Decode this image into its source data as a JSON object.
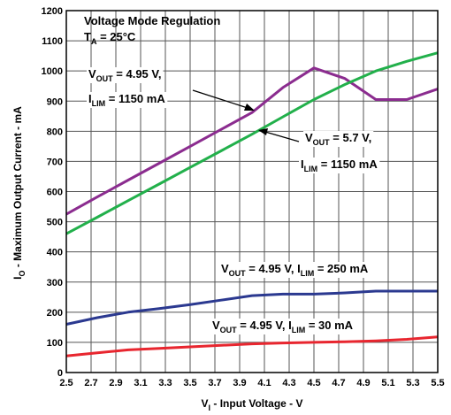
{
  "chart_data": {
    "type": "line",
    "x": [
      2.5,
      2.75,
      3.0,
      3.25,
      3.5,
      3.75,
      4.0,
      4.25,
      4.5,
      4.75,
      5.0,
      5.25,
      5.5
    ],
    "series": [
      {
        "name": "VOUT = 4.95 V, ILIM = 1150 mA",
        "color": "#8b2c8f",
        "values": [
          525,
          582,
          638,
          694,
          750,
          806,
          862,
          945,
          1010,
          975,
          905,
          905,
          940
        ]
      },
      {
        "name": "VOUT = 5.7 V, ILIM = 1150 mA",
        "color": "#22b04b",
        "values": [
          460,
          515,
          570,
          625,
          680,
          735,
          790,
          848,
          905,
          955,
          1000,
          1032,
          1060
        ]
      },
      {
        "name": "VOUT = 4.95 V, ILIM = 250 mA",
        "color": "#2b3990",
        "values": [
          160,
          182,
          200,
          212,
          225,
          240,
          255,
          260,
          260,
          264,
          270,
          270,
          270
        ]
      },
      {
        "name": "VOUT = 4.95 V, ILIM = 30 mA",
        "color": "#e8262f",
        "values": [
          55,
          65,
          75,
          80,
          85,
          90,
          95,
          98,
          100,
          102,
          105,
          110,
          118
        ]
      }
    ],
    "xlim": [
      2.5,
      5.5
    ],
    "xticks": [
      2.5,
      2.7,
      2.9,
      3.1,
      3.3,
      3.5,
      3.7,
      3.9,
      4.1,
      4.3,
      4.5,
      4.7,
      4.9,
      5.1,
      5.3,
      5.5
    ],
    "ylim": [
      0,
      1200
    ],
    "yticks": [
      0,
      100,
      200,
      300,
      400,
      500,
      600,
      700,
      800,
      900,
      1000,
      1100,
      1200
    ],
    "grid": true,
    "x_label": [
      {
        "text": "V"
      },
      {
        "sub": "I"
      },
      {
        "text": " - Input Voltage - V"
      }
    ],
    "y_label": [
      {
        "text": "I"
      },
      {
        "sub": "O"
      },
      {
        "text": " - Maximum Output Current - mA"
      }
    ],
    "annotations": [
      [
        [
          {
            "text": "Voltage Mode Regulation"
          }
        ]
      ],
      [
        [
          {
            "text": "T"
          },
          {
            "sub": "A"
          },
          {
            "text": " = 25°C"
          }
        ]
      ],
      [
        [
          {
            "text": "V"
          },
          {
            "sub": "OUT"
          },
          {
            "text": " = 4.95 V,"
          }
        ],
        [
          {
            "text": "I"
          },
          {
            "sub": "LIM"
          },
          {
            "text": " = 1150 mA"
          }
        ]
      ],
      [
        [
          {
            "text": "V"
          },
          {
            "sub": "OUT"
          },
          {
            "text": " = 5.7 V,"
          }
        ],
        [
          {
            "text": "I"
          },
          {
            "sub": "LIM"
          },
          {
            "text": " = 1150 mA"
          }
        ]
      ],
      [
        [
          {
            "text": "V"
          },
          {
            "sub": "OUT"
          },
          {
            "text": " = 4.95 V, I"
          },
          {
            "sub": "LIM"
          },
          {
            "text": " = 250 mA"
          }
        ]
      ],
      [
        [
          {
            "text": "V"
          },
          {
            "sub": "OUT"
          },
          {
            "text": " = 4.95 V, I"
          },
          {
            "sub": "LIM"
          },
          {
            "text": " = 30 mA"
          }
        ]
      ]
    ]
  }
}
